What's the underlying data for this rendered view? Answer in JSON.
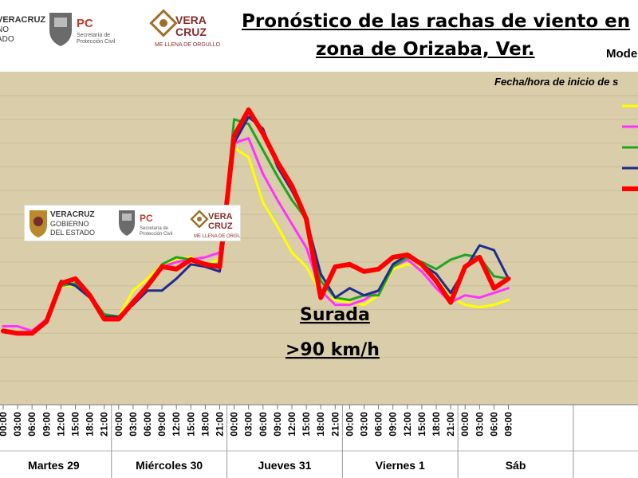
{
  "header": {
    "title_line1": "Pronóstico de las rachas de viento en",
    "title_line2": "zona de Orizaba, Ver.",
    "model_label": "Mode"
  },
  "logos": {
    "veracruz_gov_partial": [
      "VERACRUZ",
      "NO",
      "ADO"
    ],
    "pc_name": "PC",
    "pc_sub1": "Secretaría de",
    "pc_sub2": "Protección Civil",
    "veracruz_brand_1": "VERA",
    "veracruz_brand_2": "CRUZ",
    "veracruz_tagline": "ME LLENA DE ORGULLO",
    "inset_gov_1": "VERACRUZ",
    "inset_gov_2": "GOBIERNO",
    "inset_gov_3": "DEL ESTADO"
  },
  "annotation": {
    "line1": "Surada",
    "line2": ">90 km/h"
  },
  "colors": {
    "plot_bg": "#D9CDAA",
    "grid": "#C9BC97",
    "yellow": "#FFFF00",
    "magenta": "#FF33FF",
    "green": "#22A322",
    "navy": "#1F2C8C",
    "red": "#FF0000"
  },
  "chart_data": {
    "type": "line",
    "title": "Pronóstico de las rachas de viento en zona de Orizaba, Ver.",
    "legend_title": "Fecha/hora de inicio de s",
    "legend_placement": "top-right",
    "grid": true,
    "ylim": [
      0,
      14
    ],
    "x_ticks": [
      "00:00",
      "03:00",
      "06:00",
      "09:00",
      "12:00",
      "15:00",
      "18:00",
      "21:00",
      "00:00",
      "03:00",
      "06:00",
      "09:00",
      "12:00",
      "15:00",
      "18:00",
      "21:00",
      "00:00",
      "03:00",
      "06:00",
      "09:00",
      "12:00",
      "15:00",
      "18:00",
      "21:00",
      "00:00",
      "03:00",
      "06:00",
      "09:00",
      "12:00",
      "15:00",
      "18:00",
      "21:00",
      "00:00",
      "03:00",
      "06:00",
      "09:00"
    ],
    "day_labels": [
      "Martes 29",
      "Miércoles 30",
      "Jueves 31",
      "Viernes 1",
      "Sáb"
    ],
    "series": [
      {
        "color": "#FFFF00",
        "values": [
          3.3,
          3.3,
          3.1,
          3.5,
          5.0,
          5.0,
          4.5,
          3.8,
          3.7,
          4.8,
          5.3,
          5.9,
          6.1,
          6.2,
          5.9,
          6.1,
          10.8,
          10.4,
          8.5,
          7.5,
          6.4,
          5.8,
          4.7,
          4.4,
          4.3,
          4.2,
          4.6,
          5.7,
          5.9,
          5.8,
          5.3,
          4.5,
          4.2,
          4.1,
          4.2,
          4.4
        ]
      },
      {
        "color": "#FF33FF",
        "values": [
          3.3,
          3.3,
          3.1,
          3.6,
          5.0,
          5.1,
          4.6,
          3.7,
          3.6,
          4.4,
          5.0,
          5.8,
          6.0,
          6.1,
          6.2,
          6.4,
          11.0,
          11.2,
          9.7,
          8.6,
          7.6,
          6.6,
          4.8,
          4.2,
          4.2,
          4.4,
          4.8,
          5.8,
          6.1,
          5.6,
          4.9,
          4.3,
          4.6,
          4.5,
          4.7,
          4.9
        ]
      },
      {
        "color": "#22A322",
        "values": [
          3.1,
          3.0,
          3.0,
          3.5,
          5.0,
          5.1,
          4.6,
          3.8,
          3.7,
          4.3,
          5.0,
          5.9,
          6.2,
          6.1,
          5.9,
          5.9,
          12.0,
          11.8,
          10.7,
          9.6,
          8.6,
          7.8,
          5.2,
          4.5,
          4.4,
          4.6,
          4.6,
          5.8,
          6.2,
          6.0,
          5.7,
          6.1,
          6.3,
          6.2,
          5.4,
          5.3
        ]
      },
      {
        "color": "#1F2C8C",
        "values": [
          3.1,
          3.0,
          3.0,
          3.5,
          5.2,
          5.0,
          4.5,
          3.7,
          3.7,
          4.2,
          4.8,
          4.8,
          5.3,
          5.9,
          5.8,
          5.6,
          11.0,
          12.1,
          11.6,
          10.0,
          9.0,
          7.8,
          5.5,
          4.5,
          4.9,
          4.6,
          4.8,
          5.9,
          6.3,
          5.9,
          5.5,
          4.7,
          5.7,
          6.7,
          6.5,
          5.3
        ]
      },
      {
        "color": "#FF0000",
        "values": [
          3.1,
          3.0,
          3.0,
          3.5,
          5.1,
          5.3,
          4.6,
          3.6,
          3.6,
          4.3,
          5.0,
          5.8,
          5.7,
          6.1,
          5.9,
          5.8,
          11.3,
          12.4,
          11.4,
          10.2,
          9.2,
          7.8,
          4.5,
          5.8,
          5.9,
          5.6,
          5.7,
          6.2,
          6.3,
          5.9,
          5.2,
          4.3,
          5.8,
          6.2,
          4.9,
          5.3
        ]
      }
    ]
  }
}
